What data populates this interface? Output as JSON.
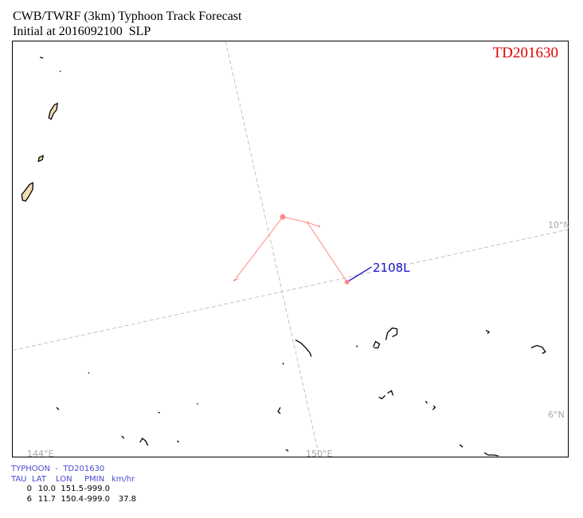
{
  "title": {
    "line1": "CWB/TWRF (3km) Typhoon Track Forecast",
    "line2": "Initial at 2016092100  SLP"
  },
  "storm_id": "TD201630",
  "colors": {
    "storm_id": "#e00000",
    "track": "#ff8a8a",
    "label_line": "#1515c8",
    "grid": "#b4b4b4",
    "coast": "#000000",
    "land_fill": "#f2dcb4",
    "info_header": "#4a4ad0"
  },
  "grid_labels": {
    "lat_10n": "10°N",
    "lat_6n": "6°N",
    "lon_144e": "144°E",
    "lon_150e": "150°E"
  },
  "track_label": "2108L",
  "forecast_table": {
    "title": "TYPHOON  -  TD201630",
    "headers": {
      "tau": "TAU",
      "lat": "LAT",
      "lon": "LON",
      "pmin": "PMIN",
      "speed": "km/hr"
    },
    "rows": [
      {
        "tau": "0",
        "lat": "10.0",
        "lon": "151.5",
        "pmin": "-999.0",
        "speed": ""
      },
      {
        "tau": "6",
        "lat": "11.7",
        "lon": "150.4",
        "pmin": "-999.0",
        "speed": "37.8"
      }
    ]
  },
  "icons": {
    "track_point": "track-point-icon",
    "island": "island-icon"
  }
}
